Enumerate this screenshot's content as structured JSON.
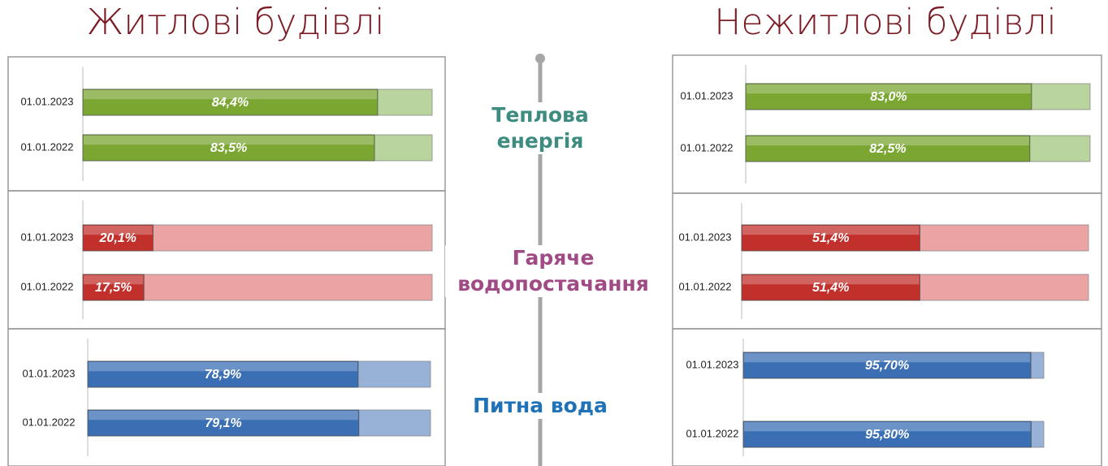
{
  "headers": [
    "Житлові будівлі",
    "Нежитлові будівлі"
  ],
  "sections": [
    {
      "label": "Теплова енергія",
      "color": "#3e8c80"
    },
    {
      "label": "Гаряче водопостачання",
      "color": "#a04a86"
    },
    {
      "label": "Питна вода",
      "color": "#1f72b8"
    }
  ],
  "chart_data": [
    {
      "type": "bar",
      "orientation": "horizontal",
      "categories": [
        "01.01.2023",
        "01.01.2022"
      ],
      "values": [
        84.4,
        83.5
      ],
      "value_labels": [
        "84,4%",
        "83,5%"
      ],
      "color": "#7aa631",
      "track_color": "#b9d49d",
      "xlim": [
        0,
        100
      ]
    },
    {
      "type": "bar",
      "orientation": "horizontal",
      "categories": [
        "01.01.2023",
        "01.01.2022"
      ],
      "values": [
        20.1,
        17.5
      ],
      "value_labels": [
        "20,1%",
        "17,5%"
      ],
      "color": "#c2302c",
      "track_color": "#eba3a3",
      "xlim": [
        0,
        100
      ]
    },
    {
      "type": "bar",
      "orientation": "horizontal",
      "categories": [
        "01.01.2023",
        "01.01.2022"
      ],
      "values": [
        78.9,
        79.1
      ],
      "value_labels": [
        "78,9%",
        "79,1%"
      ],
      "color": "#3a6fb4",
      "track_color": "#98b1d6",
      "xlim": [
        0,
        100
      ]
    },
    {
      "type": "bar",
      "orientation": "horizontal",
      "categories": [
        "01.01.2023",
        "01.01.2022"
      ],
      "values": [
        83.0,
        82.5
      ],
      "value_labels": [
        "83,0%",
        "82,5%"
      ],
      "color": "#7aa631",
      "track_color": "#b9d49d",
      "xlim": [
        0,
        100
      ]
    },
    {
      "type": "bar",
      "orientation": "horizontal",
      "categories": [
        "01.01.2023",
        "01.01.2022"
      ],
      "values": [
        51.4,
        51.4
      ],
      "value_labels": [
        "51,4%",
        "51,4%"
      ],
      "color": "#c2302c",
      "track_color": "#eba3a3",
      "xlim": [
        0,
        100
      ]
    },
    {
      "type": "bar",
      "orientation": "horizontal",
      "categories": [
        "01.01.2023",
        "01.01.2022"
      ],
      "values": [
        95.7,
        95.8
      ],
      "value_labels": [
        "95,70%",
        "95,80%"
      ],
      "color": "#3a6fb4",
      "track_color": "#98b1d6",
      "xlim": [
        0,
        100
      ]
    }
  ]
}
